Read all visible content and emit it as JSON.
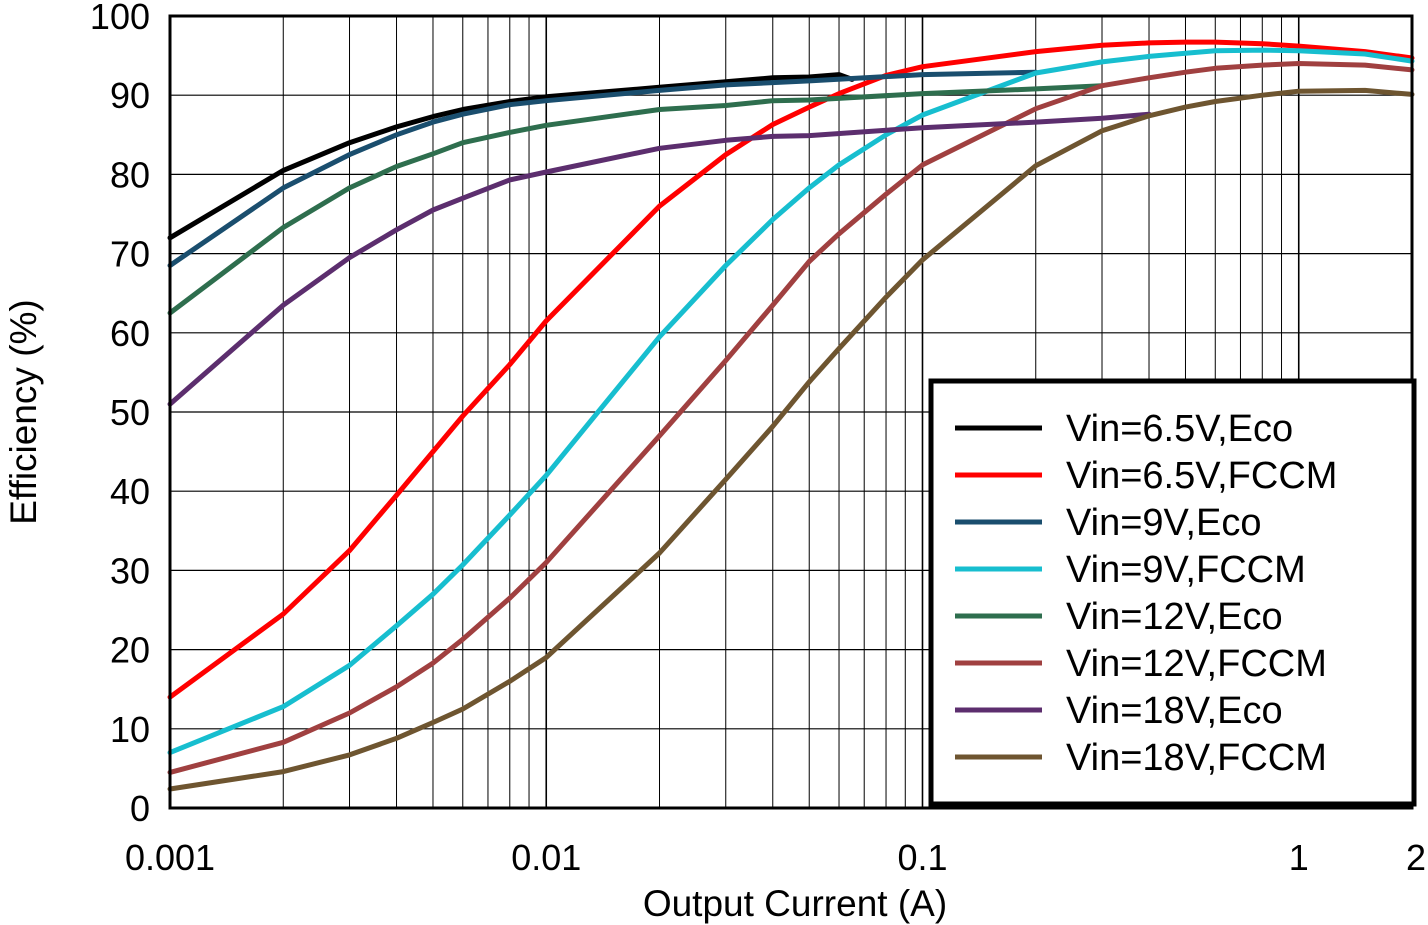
{
  "chart_data": {
    "type": "line",
    "title": "",
    "xlabel": "Output Current (A)",
    "ylabel": "Efficiency (%)",
    "xscale": "log",
    "xlim": [
      0.001,
      2
    ],
    "ylim": [
      0,
      100
    ],
    "x_ticks": [
      {
        "value": 0.001,
        "label": "0.001"
      },
      {
        "value": 0.01,
        "label": "0.01"
      },
      {
        "value": 0.1,
        "label": "0.1"
      },
      {
        "value": 1,
        "label": "1"
      },
      {
        "value": 2,
        "label": "2"
      }
    ],
    "y_ticks": [
      {
        "value": 0,
        "label": "0"
      },
      {
        "value": 10,
        "label": "10"
      },
      {
        "value": 20,
        "label": "20"
      },
      {
        "value": 30,
        "label": "30"
      },
      {
        "value": 40,
        "label": "40"
      },
      {
        "value": 50,
        "label": "50"
      },
      {
        "value": 60,
        "label": "60"
      },
      {
        "value": 70,
        "label": "70"
      },
      {
        "value": 80,
        "label": "80"
      },
      {
        "value": 90,
        "label": "90"
      },
      {
        "value": 100,
        "label": "100"
      }
    ],
    "grid": true,
    "legend_position": "bottom-right",
    "series": [
      {
        "name": "Vin=6.5V,Eco",
        "color": "#000000",
        "x": [
          0.001,
          0.002,
          0.003,
          0.004,
          0.005,
          0.006,
          0.008,
          0.01,
          0.02,
          0.03,
          0.04,
          0.05,
          0.06,
          0.065
        ],
        "y": [
          72,
          80.5,
          84,
          86,
          87.3,
          88.2,
          89.2,
          89.8,
          91,
          91.7,
          92.2,
          92.3,
          92.6,
          92.0
        ]
      },
      {
        "name": "Vin=6.5V,FCCM",
        "color": "#ff0000",
        "x": [
          0.001,
          0.002,
          0.003,
          0.004,
          0.005,
          0.006,
          0.008,
          0.01,
          0.02,
          0.03,
          0.04,
          0.05,
          0.06,
          0.08,
          0.1,
          0.2,
          0.3,
          0.4,
          0.5,
          0.6,
          0.8,
          1,
          1.5,
          2
        ],
        "y": [
          14,
          24.5,
          32.5,
          39.5,
          45,
          49.5,
          56,
          61.5,
          76,
          82.5,
          86.3,
          88.5,
          90.2,
          92.5,
          93.6,
          95.5,
          96.3,
          96.6,
          96.7,
          96.7,
          96.5,
          96.2,
          95.5,
          94.7
        ]
      },
      {
        "name": "Vin=9V,Eco",
        "color": "#1a4e6e",
        "x": [
          0.001,
          0.002,
          0.003,
          0.004,
          0.005,
          0.006,
          0.008,
          0.01,
          0.02,
          0.03,
          0.05,
          0.1,
          0.2
        ],
        "y": [
          68.5,
          78.3,
          82.5,
          85,
          86.6,
          87.6,
          88.8,
          89.3,
          90.6,
          91.3,
          91.8,
          92.6,
          92.9
        ]
      },
      {
        "name": "Vin=9V,FCCM",
        "color": "#17becf",
        "x": [
          0.001,
          0.002,
          0.003,
          0.004,
          0.005,
          0.006,
          0.008,
          0.01,
          0.02,
          0.03,
          0.04,
          0.05,
          0.06,
          0.08,
          0.1,
          0.2,
          0.3,
          0.4,
          0.5,
          0.6,
          0.8,
          1,
          1.5,
          2
        ],
        "y": [
          7,
          12.8,
          18,
          23,
          27,
          30.7,
          37,
          42,
          59.5,
          68.5,
          74.3,
          78.3,
          81.2,
          85,
          87.5,
          92.8,
          94.2,
          94.9,
          95.3,
          95.6,
          95.7,
          95.6,
          95.2,
          94.3
        ]
      },
      {
        "name": "Vin=12V,Eco",
        "color": "#2e6e4e",
        "x": [
          0.001,
          0.002,
          0.003,
          0.004,
          0.005,
          0.006,
          0.008,
          0.01,
          0.02,
          0.03,
          0.04,
          0.05,
          0.1,
          0.2,
          0.3
        ],
        "y": [
          62.5,
          73.3,
          78.3,
          81,
          82.6,
          84,
          85.3,
          86.2,
          88.2,
          88.7,
          89.3,
          89.4,
          90.2,
          90.8,
          91.2
        ]
      },
      {
        "name": "Vin=12V,FCCM",
        "color": "#a04040",
        "x": [
          0.001,
          0.002,
          0.003,
          0.004,
          0.005,
          0.006,
          0.008,
          0.01,
          0.02,
          0.03,
          0.04,
          0.05,
          0.06,
          0.08,
          0.1,
          0.2,
          0.3,
          0.4,
          0.5,
          0.6,
          0.8,
          1,
          1.5,
          2
        ],
        "y": [
          4.5,
          8.3,
          12,
          15.3,
          18.3,
          21.3,
          26.5,
          31,
          47,
          56.5,
          63.5,
          69,
          72.5,
          77.5,
          81.2,
          88.3,
          91.2,
          92.2,
          92.9,
          93.4,
          93.8,
          94.0,
          93.8,
          93.2
        ]
      },
      {
        "name": "Vin=18V,Eco",
        "color": "#5c2e6e",
        "x": [
          0.001,
          0.002,
          0.003,
          0.004,
          0.005,
          0.006,
          0.008,
          0.01,
          0.02,
          0.03,
          0.04,
          0.05,
          0.1,
          0.2,
          0.3,
          0.4
        ],
        "y": [
          51,
          63.5,
          69.5,
          73,
          75.5,
          77,
          79.3,
          80.3,
          83.3,
          84.3,
          84.8,
          84.9,
          85.9,
          86.6,
          87.1,
          87.6
        ]
      },
      {
        "name": "Vin=18V,FCCM",
        "color": "#6e5530",
        "x": [
          0.001,
          0.002,
          0.003,
          0.004,
          0.005,
          0.006,
          0.008,
          0.01,
          0.02,
          0.03,
          0.04,
          0.05,
          0.06,
          0.08,
          0.1,
          0.2,
          0.3,
          0.4,
          0.5,
          0.6,
          0.8,
          1,
          1.5,
          2
        ],
        "y": [
          2.4,
          4.6,
          6.7,
          8.8,
          10.8,
          12.5,
          16,
          19,
          32.2,
          41.5,
          48.2,
          53.8,
          58,
          64.5,
          69.2,
          81.1,
          85.5,
          87.4,
          88.5,
          89.2,
          90,
          90.5,
          90.6,
          90.1
        ]
      }
    ]
  }
}
